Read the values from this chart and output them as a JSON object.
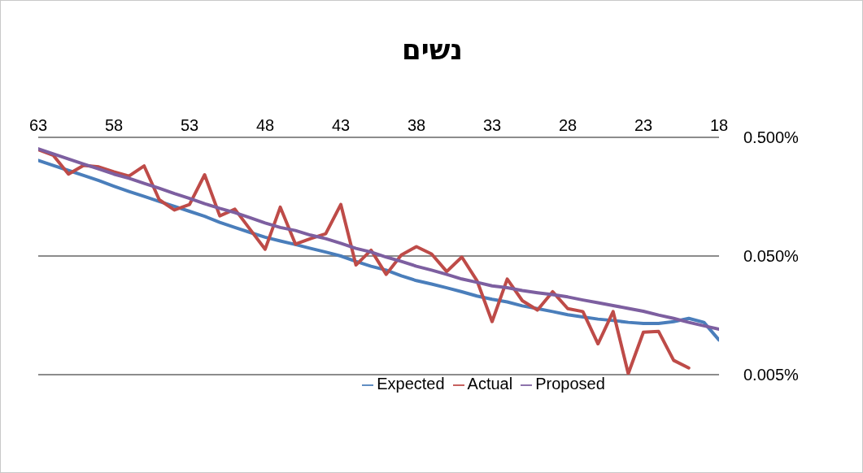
{
  "chart_data": {
    "type": "line",
    "title": "נשים",
    "x": [
      63,
      62,
      61,
      60,
      59,
      58,
      57,
      56,
      55,
      54,
      53,
      52,
      51,
      50,
      49,
      48,
      47,
      46,
      45,
      44,
      43,
      42,
      41,
      40,
      39,
      38,
      37,
      36,
      35,
      34,
      33,
      32,
      31,
      30,
      29,
      28,
      27,
      26,
      25,
      24,
      23,
      22,
      21,
      20,
      19,
      18
    ],
    "xlim": [
      63,
      18
    ],
    "xticks": [
      63,
      58,
      53,
      48,
      43,
      38,
      33,
      28,
      23,
      18
    ],
    "ylim": [
      0.005,
      0.5
    ],
    "yticks": [
      {
        "value": 0.5,
        "label": "0.500%"
      },
      {
        "value": 0.05,
        "label": "0.050%"
      },
      {
        "value": 0.005,
        "label": "0.005%"
      }
    ],
    "log": "y",
    "grid": "y",
    "legend": "bottom",
    "marker": "none",
    "line_style": "solid",
    "series": [
      {
        "name": "Expected",
        "color": "#4a7ebb",
        "values": [
          0.32,
          0.29,
          0.263,
          0.239,
          0.216,
          0.194,
          0.175,
          0.159,
          0.144,
          0.131,
          0.119,
          0.108,
          0.096,
          0.087,
          0.079,
          0.072,
          0.067,
          0.0625,
          0.058,
          0.054,
          0.05,
          0.045,
          0.041,
          0.038,
          0.034,
          0.031,
          0.029,
          0.027,
          0.025,
          0.023,
          0.0216,
          0.0205,
          0.019,
          0.018,
          0.017,
          0.016,
          0.0153,
          0.0147,
          0.0143,
          0.0138,
          0.0135,
          0.0135,
          0.014,
          0.0149,
          0.0138,
          0.0098
        ]
      },
      {
        "name": "Actual",
        "color": "#be4b48",
        "values": [
          0.394,
          0.352,
          0.245,
          0.29,
          0.282,
          0.256,
          0.236,
          0.287,
          0.149,
          0.122,
          0.136,
          0.242,
          0.109,
          0.124,
          0.084,
          0.057,
          0.129,
          0.063,
          0.07,
          0.077,
          0.136,
          0.042,
          0.056,
          0.035,
          0.051,
          0.06,
          0.052,
          0.037,
          0.049,
          0.031,
          0.014,
          0.032,
          0.021,
          0.0175,
          0.025,
          0.018,
          0.017,
          0.0091,
          0.017,
          0.0051,
          0.0114,
          0.0116,
          0.0066,
          0.0057,
          null,
          null
        ]
      },
      {
        "name": "Proposed",
        "color": "#7d5fa0",
        "values": [
          0.4,
          0.363,
          0.329,
          0.298,
          0.271,
          0.245,
          0.226,
          0.205,
          0.186,
          0.168,
          0.153,
          0.138,
          0.126,
          0.116,
          0.105,
          0.095,
          0.087,
          0.082,
          0.075,
          0.07,
          0.064,
          0.058,
          0.054,
          0.049,
          0.045,
          0.041,
          0.038,
          0.035,
          0.032,
          0.03,
          0.028,
          0.027,
          0.0256,
          0.0245,
          0.0236,
          0.0226,
          0.0213,
          0.0202,
          0.0191,
          0.0181,
          0.0171,
          0.0159,
          0.0149,
          0.0138,
          0.0129,
          0.0121
        ]
      }
    ]
  }
}
